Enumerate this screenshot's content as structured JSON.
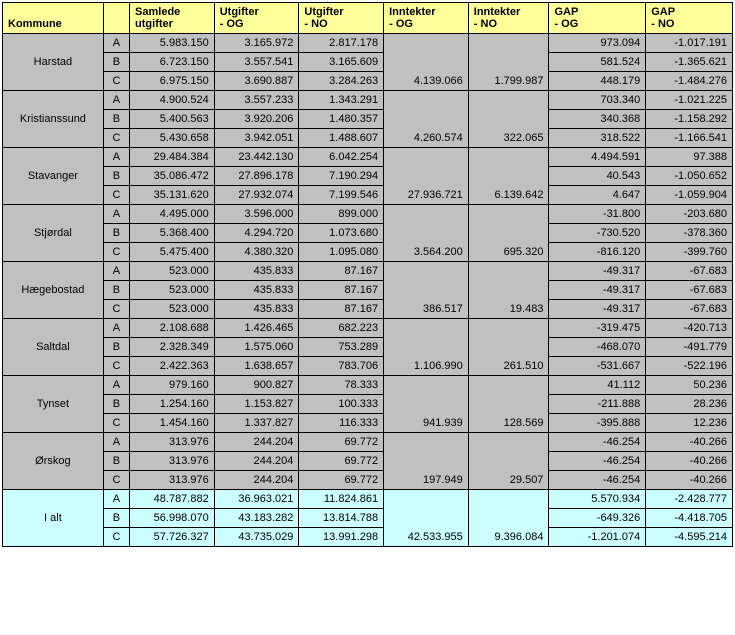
{
  "colors": {
    "header_bg": "#ffff99",
    "group_bg": "#c0c0c0",
    "total_bg": "#ccffff",
    "border": "#000000",
    "text": "#000000"
  },
  "fontsize": 11,
  "headers": {
    "kommune": "Kommune",
    "label": "",
    "samlede": "Samlede utgifter",
    "utg_og": "Utgifter - OG",
    "utg_no": "Utgifter - NO",
    "inn_og": "Inntekter - OG",
    "inn_no": "Inntekter - NO",
    "gap_og": "GAP - OG",
    "gap_no": "GAP - NO"
  },
  "groups": [
    {
      "name": "Harstad",
      "inn_og": "4.139.066",
      "inn_no": "1.799.987",
      "rows": [
        {
          "l": "A",
          "sam": "5.983.150",
          "uog": "3.165.972",
          "uno": "2.817.178",
          "gog": "973.094",
          "gno": "-1.017.191"
        },
        {
          "l": "B",
          "sam": "6.723.150",
          "uog": "3.557.541",
          "uno": "3.165.609",
          "gog": "581.524",
          "gno": "-1.365.621"
        },
        {
          "l": "C",
          "sam": "6.975.150",
          "uog": "3.690.887",
          "uno": "3.284.263",
          "gog": "448.179",
          "gno": "-1.484.276"
        }
      ]
    },
    {
      "name": "Kristianssund",
      "inn_og": "4.260.574",
      "inn_no": "322.065",
      "rows": [
        {
          "l": "A",
          "sam": "4.900.524",
          "uog": "3.557.233",
          "uno": "1.343.291",
          "gog": "703.340",
          "gno": "-1.021.225"
        },
        {
          "l": "B",
          "sam": "5.400.563",
          "uog": "3.920.206",
          "uno": "1.480.357",
          "gog": "340.368",
          "gno": "-1.158.292"
        },
        {
          "l": "C",
          "sam": "5.430.658",
          "uog": "3.942.051",
          "uno": "1.488.607",
          "gog": "318.522",
          "gno": "-1.166.541"
        }
      ]
    },
    {
      "name": "Stavanger",
      "inn_og": "27.936.721",
      "inn_no": "6.139.642",
      "rows": [
        {
          "l": "A",
          "sam": "29.484.384",
          "uog": "23.442.130",
          "uno": "6.042.254",
          "gog": "4.494.591",
          "gno": "97.388"
        },
        {
          "l": "B",
          "sam": "35.086.472",
          "uog": "27.896.178",
          "uno": "7.190.294",
          "gog": "40.543",
          "gno": "-1.050.652"
        },
        {
          "l": "C",
          "sam": "35.131.620",
          "uog": "27.932.074",
          "uno": "7.199.546",
          "gog": "4.647",
          "gno": "-1.059.904"
        }
      ]
    },
    {
      "name": "Stjørdal",
      "inn_og": "3.564.200",
      "inn_no": "695.320",
      "rows": [
        {
          "l": "A",
          "sam": "4.495.000",
          "uog": "3.596.000",
          "uno": "899.000",
          "gog": "-31.800",
          "gno": "-203.680"
        },
        {
          "l": "B",
          "sam": "5.368.400",
          "uog": "4.294.720",
          "uno": "1.073.680",
          "gog": "-730.520",
          "gno": "-378.360"
        },
        {
          "l": "C",
          "sam": "5.475.400",
          "uog": "4.380.320",
          "uno": "1.095.080",
          "gog": "-816.120",
          "gno": "-399.760"
        }
      ]
    },
    {
      "name": "Hægebostad",
      "inn_og": "386.517",
      "inn_no": "19.483",
      "rows": [
        {
          "l": "A",
          "sam": "523.000",
          "uog": "435.833",
          "uno": "87.167",
          "gog": "-49.317",
          "gno": "-67.683"
        },
        {
          "l": "B",
          "sam": "523.000",
          "uog": "435.833",
          "uno": "87.167",
          "gog": "-49.317",
          "gno": "-67.683"
        },
        {
          "l": "C",
          "sam": "523.000",
          "uog": "435.833",
          "uno": "87.167",
          "gog": "-49.317",
          "gno": "-67.683"
        }
      ]
    },
    {
      "name": "Saltdal",
      "inn_og": "1.106.990",
      "inn_no": "261.510",
      "rows": [
        {
          "l": "A",
          "sam": "2.108.688",
          "uog": "1.426.465",
          "uno": "682.223",
          "gog": "-319.475",
          "gno": "-420.713"
        },
        {
          "l": "B",
          "sam": "2.328.349",
          "uog": "1.575.060",
          "uno": "753.289",
          "gog": "-468.070",
          "gno": "-491.779"
        },
        {
          "l": "C",
          "sam": "2.422.363",
          "uog": "1.638.657",
          "uno": "783.706",
          "gog": "-531.667",
          "gno": "-522.196"
        }
      ]
    },
    {
      "name": "Tynset",
      "inn_og": "941.939",
      "inn_no": "128.569",
      "rows": [
        {
          "l": "A",
          "sam": "979.160",
          "uog": "900.827",
          "uno": "78.333",
          "gog": "41.112",
          "gno": "50.236"
        },
        {
          "l": "B",
          "sam": "1.254.160",
          "uog": "1.153.827",
          "uno": "100.333",
          "gog": "-211.888",
          "gno": "28.236"
        },
        {
          "l": "C",
          "sam": "1.454.160",
          "uog": "1.337.827",
          "uno": "116.333",
          "gog": "-395.888",
          "gno": "12.236"
        }
      ]
    },
    {
      "name": "Ørskog",
      "inn_og": "197.949",
      "inn_no": "29.507",
      "rows": [
        {
          "l": "A",
          "sam": "313.976",
          "uog": "244.204",
          "uno": "69.772",
          "gog": "-46.254",
          "gno": "-40.266"
        },
        {
          "l": "B",
          "sam": "313.976",
          "uog": "244.204",
          "uno": "69.772",
          "gog": "-46.254",
          "gno": "-40.266"
        },
        {
          "l": "C",
          "sam": "313.976",
          "uog": "244.204",
          "uno": "69.772",
          "gog": "-46.254",
          "gno": "-40.266"
        }
      ]
    }
  ],
  "total": {
    "name": "I alt",
    "inn_og": "42.533.955",
    "inn_no": "9.396.084",
    "rows": [
      {
        "l": "A",
        "sam": "48.787.882",
        "uog": "36.963.021",
        "uno": "11.824.861",
        "gog": "5.570.934",
        "gno": "-2.428.777"
      },
      {
        "l": "B",
        "sam": "56.998.070",
        "uog": "43.183.282",
        "uno": "13.814.788",
        "gog": "-649.326",
        "gno": "-4.418.705"
      },
      {
        "l": "C",
        "sam": "57.726.327",
        "uog": "43.735.029",
        "uno": "13.991.298",
        "gog": "-1.201.074",
        "gno": "-4.595.214"
      }
    ]
  }
}
